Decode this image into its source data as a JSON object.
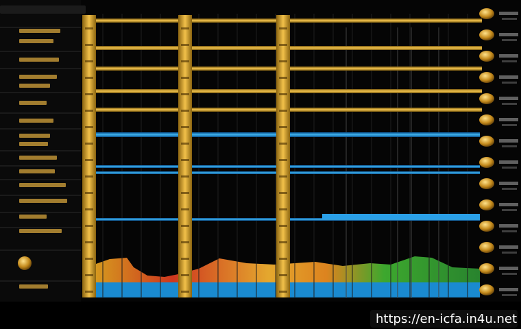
{
  "watermark": "https://en-icfa.in4u.net"
}
